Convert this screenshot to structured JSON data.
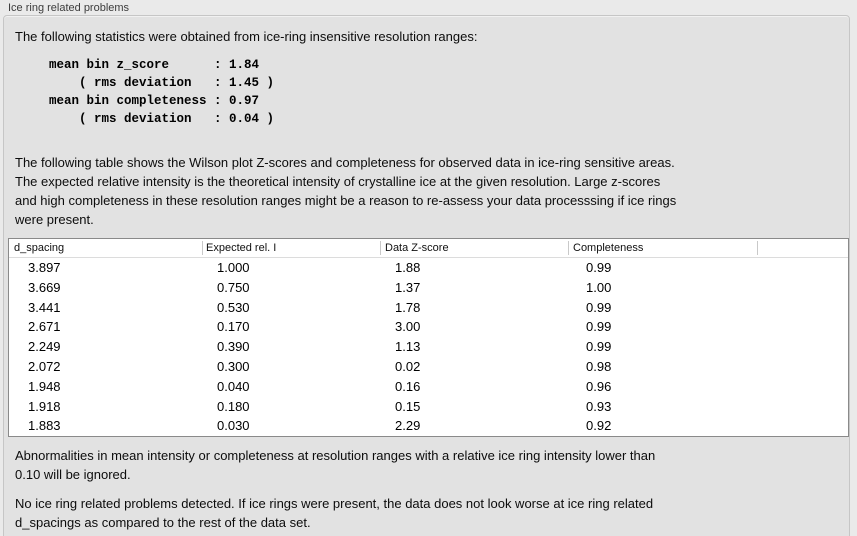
{
  "panel": {
    "title": "Ice ring related problems"
  },
  "intro": "The following statistics were obtained from ice-ring insensitive resolution ranges:",
  "stats_block": {
    "lines": [
      "mean bin z_score      : 1.84",
      "    ( rms deviation   : 1.45 )",
      "mean bin completeness : 0.97",
      "    ( rms deviation   : 0.04 )"
    ],
    "values": {
      "mean_bin_z_score": "1.84",
      "z_score_rms_deviation": "1.45",
      "mean_bin_completeness": "0.97",
      "completeness_rms_deviation": "0.04"
    }
  },
  "description": {
    "line1": "The following table shows the Wilson plot Z-scores and completeness for observed data in ice-ring sensitive areas.",
    "line2": "The expected relative intensity is the theoretical intensity of crystalline ice at the given resolution. Large z-scores",
    "line3": "and high completeness in these resolution ranges might be a reason to re-assess your data processsing if ice rings",
    "line4": "were present."
  },
  "table": {
    "headers": [
      "d_spacing",
      "Expected rel. I",
      "Data Z-score",
      "Completeness",
      ""
    ],
    "rows": [
      [
        "3.897",
        "1.000",
        "1.88",
        "0.99"
      ],
      [
        "3.669",
        "0.750",
        "1.37",
        "1.00"
      ],
      [
        "3.441",
        "0.530",
        "1.78",
        "0.99"
      ],
      [
        "2.671",
        "0.170",
        "3.00",
        "0.99"
      ],
      [
        "2.249",
        "0.390",
        "1.13",
        "0.99"
      ],
      [
        "2.072",
        "0.300",
        "0.02",
        "0.98"
      ],
      [
        "1.948",
        "0.040",
        "0.16",
        "0.96"
      ],
      [
        "1.918",
        "0.180",
        "0.15",
        "0.93"
      ],
      [
        "1.883",
        "0.030",
        "2.29",
        "0.92"
      ]
    ]
  },
  "note_ignore": {
    "line1": "Abnormalities in mean intensity or completeness at resolution ranges with a relative ice ring intensity lower than",
    "line2": "0.10 will be ignored."
  },
  "conclusion": {
    "line1": "No ice ring related problems detected. If ice rings were present, the data does not look worse at ice ring related",
    "line2": "d_spacings as compared to the rest of the data set."
  },
  "colors": {
    "page_bg": "#eaeaea",
    "panel_bg": "#e2e2e2",
    "panel_border": "#c6c6c6",
    "table_bg": "#ffffff",
    "table_border": "#8a8a8a",
    "text": "#0c0c0c"
  }
}
